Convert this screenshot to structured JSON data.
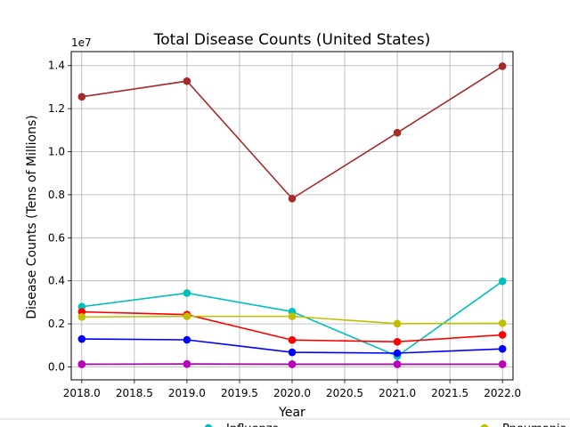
{
  "chart_data": {
    "type": "line",
    "title": "Total Disease Counts (United States)",
    "xlabel": "Year",
    "ylabel": "Disease Counts (Tens of Millions)",
    "offset_label": "1e7",
    "x": [
      2018,
      2019,
      2020,
      2021,
      2022
    ],
    "xlim": [
      2017.9,
      2022.1
    ],
    "ylim": [
      -0.06,
      1.465
    ],
    "xticks": [
      "2018.0",
      "2018.5",
      "2019.0",
      "2019.5",
      "2020.0",
      "2020.5",
      "2021.0",
      "2021.5",
      "2022.0"
    ],
    "yticks": [
      "0.0",
      "0.2",
      "0.4",
      "0.6",
      "0.8",
      "1.0",
      "1.2",
      "1.4"
    ],
    "grid": true,
    "series": [
      {
        "color": "#a52a2a",
        "values": [
          1.255,
          1.328,
          0.782,
          1.088,
          1.397
        ]
      },
      {
        "color": "#00bfbf",
        "values": [
          0.28,
          0.343,
          0.257,
          0.05,
          0.398
        ]
      },
      {
        "color": "#ff0000",
        "values": [
          0.256,
          0.243,
          0.125,
          0.117,
          0.149
        ]
      },
      {
        "color": "#bfbf00",
        "values": [
          0.232,
          0.235,
          0.235,
          0.201,
          0.203
        ]
      },
      {
        "color": "#0000ff",
        "values": [
          0.13,
          0.126,
          0.068,
          0.064,
          0.084
        ]
      },
      {
        "color": "#008000",
        "values": [
          0.013,
          0.014,
          0.013,
          0.013,
          0.013
        ]
      },
      {
        "color": "#bf00bf",
        "values": [
          0.012,
          0.013,
          0.012,
          0.012,
          0.012
        ]
      }
    ],
    "legend": {
      "placement": "bottom",
      "entries": [
        {
          "label": "Influenza",
          "color": "#00bfbf"
        },
        {
          "label": "Pneumonia",
          "color": "#bfbf00"
        }
      ]
    }
  }
}
